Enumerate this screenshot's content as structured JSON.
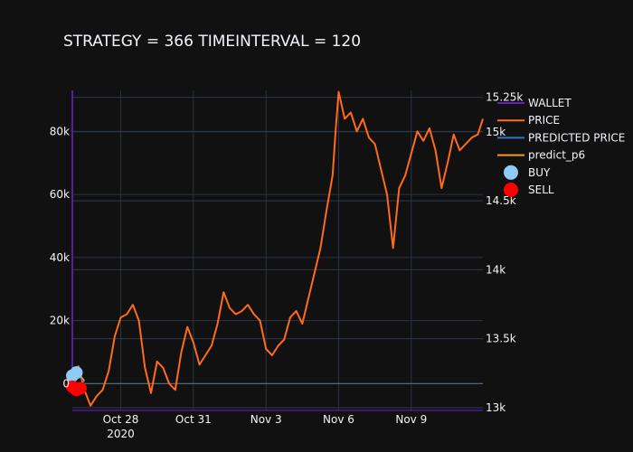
{
  "chart_data": {
    "type": "line",
    "title": "STRATEGY = 366 TIMEINTERVAL = 120",
    "x_range": [
      "2020-10-26T00:00",
      "2020-11-11T23:00"
    ],
    "x_ticks": [
      {
        "date": "2020-10-28",
        "label": "Oct 28",
        "sublabel": "2020"
      },
      {
        "date": "2020-10-31",
        "label": "Oct 31",
        "sublabel": ""
      },
      {
        "date": "2020-11-03",
        "label": "Nov 3",
        "sublabel": ""
      },
      {
        "date": "2020-11-06",
        "label": "Nov 6",
        "sublabel": ""
      },
      {
        "date": "2020-11-09",
        "label": "Nov 9",
        "sublabel": ""
      }
    ],
    "y_left": {
      "range": [
        -8500,
        93000
      ],
      "ticks": [
        {
          "value": 0,
          "label": "0"
        },
        {
          "value": 20000,
          "label": "20k"
        },
        {
          "value": 40000,
          "label": "40k"
        },
        {
          "value": 60000,
          "label": "60k"
        },
        {
          "value": 80000,
          "label": "80k"
        }
      ]
    },
    "y_right": {
      "range": [
        12980,
        15300
      ],
      "ticks": [
        {
          "value": 13000,
          "label": "13k"
        },
        {
          "value": 13500,
          "label": "13.5k"
        },
        {
          "value": 14000,
          "label": "14k"
        },
        {
          "value": 14500,
          "label": "14.5k"
        },
        {
          "value": 15000,
          "label": "15k"
        },
        {
          "value": 15250,
          "label": "15.25k"
        }
      ]
    },
    "legend_position": "right",
    "series": [
      {
        "name": "WALLET",
        "kind": "line",
        "axis": "left",
        "color": "#6a1fc9",
        "points": [
          [
            "2020-10-26T00:00",
            4000
          ],
          [
            "2020-10-26T00:00",
            48000
          ],
          [
            "2020-10-26T00:00",
            93000
          ]
        ]
      },
      {
        "name": "PRICE",
        "kind": "line",
        "axis": "left",
        "color": "#ff6b1a",
        "points": [
          [
            "2020-10-26T00:00",
            3000
          ],
          [
            "2020-10-26T06:00",
            5500
          ],
          [
            "2020-10-26T12:00",
            -2000
          ],
          [
            "2020-10-26T18:00",
            -7000
          ],
          [
            "2020-10-27T00:00",
            -4000
          ],
          [
            "2020-10-27T06:00",
            -2000
          ],
          [
            "2020-10-27T12:00",
            4000
          ],
          [
            "2020-10-27T18:00",
            15000
          ],
          [
            "2020-10-28T00:00",
            21000
          ],
          [
            "2020-10-28T06:00",
            22000
          ],
          [
            "2020-10-28T12:00",
            25000
          ],
          [
            "2020-10-28T18:00",
            20000
          ],
          [
            "2020-10-29T00:00",
            5000
          ],
          [
            "2020-10-29T06:00",
            -3000
          ],
          [
            "2020-10-29T12:00",
            7000
          ],
          [
            "2020-10-29T18:00",
            5000
          ],
          [
            "2020-10-30T00:00",
            0
          ],
          [
            "2020-10-30T06:00",
            -2000
          ],
          [
            "2020-10-30T12:00",
            10000
          ],
          [
            "2020-10-30T18:00",
            18000
          ],
          [
            "2020-10-31T00:00",
            13000
          ],
          [
            "2020-10-31T06:00",
            6000
          ],
          [
            "2020-10-31T12:00",
            9000
          ],
          [
            "2020-10-31T18:00",
            12000
          ],
          [
            "2020-11-01T00:00",
            19000
          ],
          [
            "2020-11-01T06:00",
            29000
          ],
          [
            "2020-11-01T12:00",
            24000
          ],
          [
            "2020-11-01T18:00",
            22000
          ],
          [
            "2020-11-02T00:00",
            23000
          ],
          [
            "2020-11-02T06:00",
            25000
          ],
          [
            "2020-11-02T12:00",
            22000
          ],
          [
            "2020-11-02T18:00",
            20000
          ],
          [
            "2020-11-03T00:00",
            11000
          ],
          [
            "2020-11-03T06:00",
            9000
          ],
          [
            "2020-11-03T12:00",
            12000
          ],
          [
            "2020-11-03T18:00",
            14000
          ],
          [
            "2020-11-04T00:00",
            21000
          ],
          [
            "2020-11-04T06:00",
            23000
          ],
          [
            "2020-11-04T12:00",
            19000
          ],
          [
            "2020-11-04T18:00",
            27000
          ],
          [
            "2020-11-05T00:00",
            35000
          ],
          [
            "2020-11-05T06:00",
            43000
          ],
          [
            "2020-11-05T12:00",
            55000
          ],
          [
            "2020-11-05T18:00",
            66000
          ],
          [
            "2020-11-05T21:00",
            80000
          ],
          [
            "2020-11-06T00:00",
            92500
          ],
          [
            "2020-11-06T06:00",
            84000
          ],
          [
            "2020-11-06T12:00",
            86000
          ],
          [
            "2020-11-06T18:00",
            80000
          ],
          [
            "2020-11-07T00:00",
            84000
          ],
          [
            "2020-11-07T06:00",
            78000
          ],
          [
            "2020-11-07T12:00",
            76000
          ],
          [
            "2020-11-07T18:00",
            68000
          ],
          [
            "2020-11-08T00:00",
            60000
          ],
          [
            "2020-11-08T06:00",
            43000
          ],
          [
            "2020-11-08T12:00",
            62000
          ],
          [
            "2020-11-08T18:00",
            66000
          ],
          [
            "2020-11-09T00:00",
            73000
          ],
          [
            "2020-11-09T06:00",
            80000
          ],
          [
            "2020-11-09T12:00",
            77000
          ],
          [
            "2020-11-09T18:00",
            81000
          ],
          [
            "2020-11-10T00:00",
            74000
          ],
          [
            "2020-11-10T06:00",
            62000
          ],
          [
            "2020-11-10T12:00",
            70000
          ],
          [
            "2020-11-10T18:00",
            79000
          ],
          [
            "2020-11-11T00:00",
            74000
          ],
          [
            "2020-11-11T06:00",
            76000
          ],
          [
            "2020-11-11T12:00",
            78000
          ],
          [
            "2020-11-11T18:00",
            79000
          ],
          [
            "2020-11-11T23:00",
            84000
          ]
        ]
      },
      {
        "name": "PREDICTED PRICE",
        "kind": "line",
        "axis": "left",
        "color": "#3b6fd1",
        "points": [
          [
            "2020-10-26T00:00",
            1000
          ],
          [
            "2020-10-26T06:00",
            2500
          ],
          [
            "2020-10-26T12:00",
            500
          ]
        ]
      },
      {
        "name": "predict_p6",
        "kind": "line",
        "axis": "left",
        "color": "#f59b1c",
        "points": [
          [
            "2020-10-26T00:00",
            1500
          ],
          [
            "2020-10-26T06:00",
            3000
          ],
          [
            "2020-10-26T12:00",
            1000
          ]
        ]
      },
      {
        "name": "BUY",
        "kind": "markers",
        "axis": "left",
        "color": "#8fcbf5",
        "points": [
          [
            "2020-10-26T00:00",
            2500
          ],
          [
            "2020-10-26T04:00",
            3500
          ]
        ]
      },
      {
        "name": "SELL",
        "kind": "markers",
        "axis": "left",
        "color": "#ff0000",
        "points": [
          [
            "2020-10-26T00:00",
            -1000
          ],
          [
            "2020-10-26T04:00",
            -2000
          ],
          [
            "2020-10-26T08:00",
            -1500
          ]
        ]
      }
    ]
  }
}
